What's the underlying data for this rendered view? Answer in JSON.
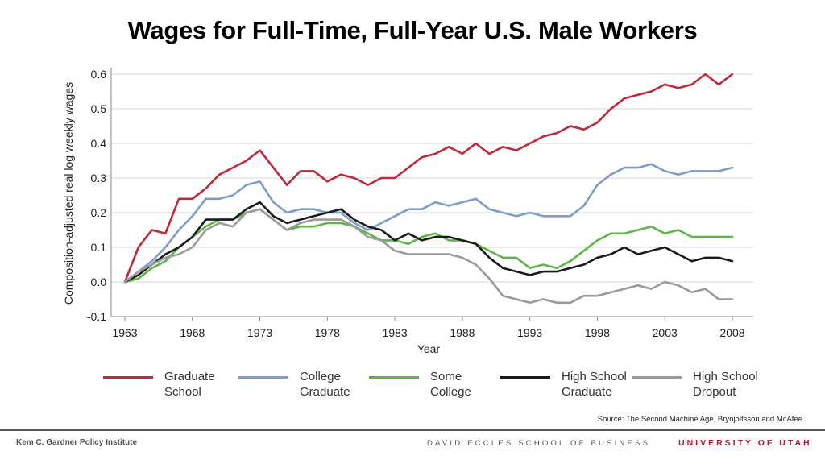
{
  "slide": {
    "title": "Wages for Full-Time, Full-Year U.S. Male Workers",
    "source": "Source: The Second Machine Age, Brynjolfsson and McAfee",
    "footer_left": "Kem C. Gardner Policy Institute",
    "footer_mid": "DAVID ECCLES SCHOOL OF BUSINESS",
    "footer_right": "UNIVERSITY OF UTAH",
    "footer_right_color": "#b5172b"
  },
  "chart_data": {
    "type": "line",
    "title": "Wages for Full-Time, Full-Year U.S. Male Workers",
    "xlabel": "Year",
    "ylabel": "Composition-adjusted real log weekly wages",
    "xlim": [
      1963,
      2008
    ],
    "ylim": [
      -0.1,
      0.6
    ],
    "xticks": [
      1963,
      1968,
      1973,
      1978,
      1983,
      1988,
      1993,
      1998,
      2003,
      2008
    ],
    "yticks": [
      -0.1,
      0.0,
      0.1,
      0.2,
      0.3,
      0.4,
      0.5,
      0.6
    ],
    "ytick_labels": [
      "-0.1",
      "0.0",
      "0.1",
      "0.2",
      "0.3",
      "0.4",
      "0.5",
      "0.6"
    ],
    "grid": "horizontal",
    "legend_position": "bottom",
    "x": [
      1963,
      1964,
      1965,
      1966,
      1967,
      1968,
      1969,
      1970,
      1971,
      1972,
      1973,
      1974,
      1975,
      1976,
      1977,
      1978,
      1979,
      1980,
      1981,
      1982,
      1983,
      1984,
      1985,
      1986,
      1987,
      1988,
      1989,
      1990,
      1991,
      1992,
      1993,
      1994,
      1995,
      1996,
      1997,
      1998,
      1999,
      2000,
      2001,
      2002,
      2003,
      2004,
      2005,
      2006,
      2007,
      2008
    ],
    "series": [
      {
        "name": "Graduate School",
        "color": "#c0283c",
        "values": [
          0.0,
          0.1,
          0.15,
          0.14,
          0.24,
          0.24,
          0.27,
          0.31,
          0.33,
          0.35,
          0.38,
          0.33,
          0.28,
          0.32,
          0.32,
          0.29,
          0.31,
          0.3,
          0.28,
          0.3,
          0.3,
          0.33,
          0.36,
          0.37,
          0.39,
          0.37,
          0.4,
          0.37,
          0.39,
          0.38,
          0.4,
          0.42,
          0.43,
          0.45,
          0.44,
          0.46,
          0.5,
          0.53,
          0.54,
          0.55,
          0.57,
          0.56,
          0.57,
          0.6,
          0.57,
          0.6
        ]
      },
      {
        "name": "College Graduate",
        "color": "#7e9cc9",
        "values": [
          0.0,
          0.03,
          0.06,
          0.1,
          0.15,
          0.19,
          0.24,
          0.24,
          0.25,
          0.28,
          0.29,
          0.23,
          0.2,
          0.21,
          0.21,
          0.2,
          0.2,
          0.17,
          0.15,
          0.17,
          0.19,
          0.21,
          0.21,
          0.23,
          0.22,
          0.23,
          0.24,
          0.21,
          0.2,
          0.19,
          0.2,
          0.19,
          0.19,
          0.19,
          0.22,
          0.28,
          0.31,
          0.33,
          0.33,
          0.34,
          0.32,
          0.31,
          0.32,
          0.32,
          0.32,
          0.33
        ]
      },
      {
        "name": "Some College",
        "color": "#5cb646",
        "values": [
          0.0,
          0.01,
          0.04,
          0.06,
          0.1,
          0.13,
          0.16,
          0.18,
          0.18,
          0.2,
          0.21,
          0.18,
          0.15,
          0.16,
          0.16,
          0.17,
          0.17,
          0.16,
          0.14,
          0.12,
          0.12,
          0.11,
          0.13,
          0.14,
          0.12,
          0.12,
          0.11,
          0.09,
          0.07,
          0.07,
          0.04,
          0.05,
          0.04,
          0.06,
          0.09,
          0.12,
          0.14,
          0.14,
          0.15,
          0.16,
          0.14,
          0.15,
          0.13,
          0.13,
          0.13,
          0.13
        ]
      },
      {
        "name": "High School Graduate",
        "color": "#1a1a1a",
        "values": [
          0.0,
          0.02,
          0.05,
          0.08,
          0.1,
          0.13,
          0.18,
          0.18,
          0.18,
          0.21,
          0.23,
          0.19,
          0.17,
          0.18,
          0.19,
          0.2,
          0.21,
          0.18,
          0.16,
          0.15,
          0.12,
          0.14,
          0.12,
          0.13,
          0.13,
          0.12,
          0.11,
          0.07,
          0.04,
          0.03,
          0.02,
          0.03,
          0.03,
          0.04,
          0.05,
          0.07,
          0.08,
          0.1,
          0.08,
          0.09,
          0.1,
          0.08,
          0.06,
          0.07,
          0.07,
          0.06
        ]
      },
      {
        "name": "High School Dropout",
        "color": "#9a9a9a",
        "values": [
          0.0,
          0.03,
          0.05,
          0.07,
          0.08,
          0.1,
          0.15,
          0.17,
          0.16,
          0.2,
          0.21,
          0.18,
          0.15,
          0.17,
          0.18,
          0.18,
          0.18,
          0.16,
          0.13,
          0.12,
          0.09,
          0.08,
          0.08,
          0.08,
          0.08,
          0.07,
          0.05,
          0.01,
          -0.04,
          -0.05,
          -0.06,
          -0.05,
          -0.06,
          -0.06,
          -0.04,
          -0.04,
          -0.03,
          -0.02,
          -0.01,
          -0.02,
          0.0,
          -0.01,
          -0.03,
          -0.02,
          -0.05,
          -0.05
        ]
      }
    ],
    "legend": [
      {
        "line1": "Graduate",
        "line2": "School"
      },
      {
        "line1": "College",
        "line2": "Graduate"
      },
      {
        "line1": "Some",
        "line2": "College"
      },
      {
        "line1": "High School",
        "line2": "Graduate"
      },
      {
        "line1": "High School",
        "line2": "Dropout"
      }
    ]
  }
}
